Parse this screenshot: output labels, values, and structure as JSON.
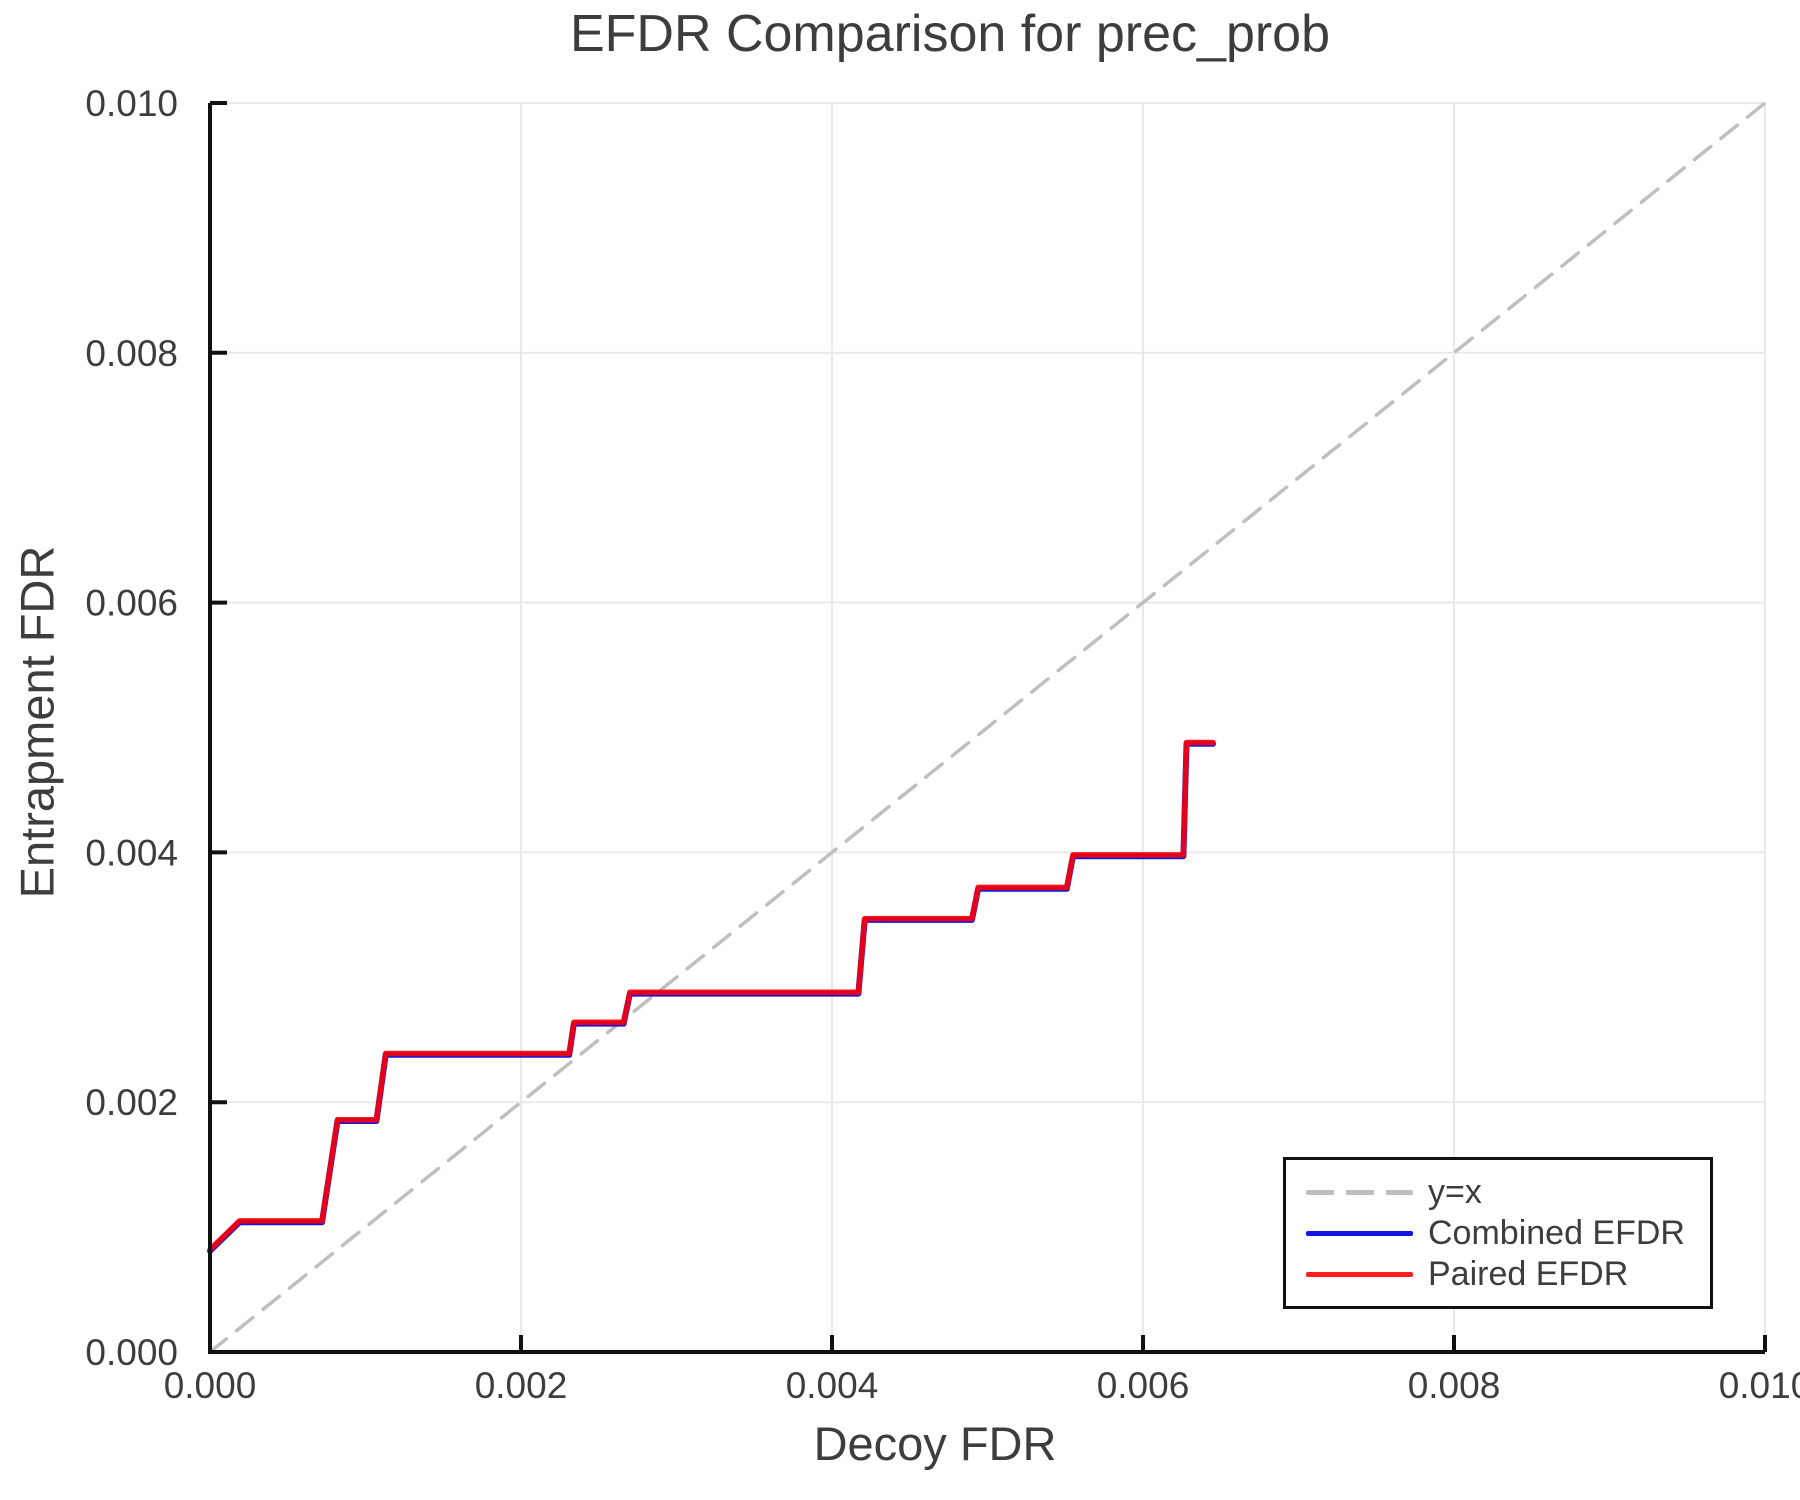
{
  "chart_data": {
    "type": "line",
    "title": "EFDR Comparison for prec_prob",
    "xlabel": "Decoy FDR",
    "ylabel": "Entrapment FDR",
    "xlim": [
      0.0,
      0.01
    ],
    "ylim": [
      0.0,
      0.01
    ],
    "xticks": [
      0.0,
      0.002,
      0.004,
      0.006,
      0.008,
      0.01
    ],
    "yticks": [
      0.0,
      0.002,
      0.004,
      0.006,
      0.008,
      0.01
    ],
    "xtick_labels": [
      "0.000",
      "0.002",
      "0.004",
      "0.006",
      "0.008",
      "0.010"
    ],
    "ytick_labels": [
      "0.000",
      "0.002",
      "0.004",
      "0.006",
      "0.008",
      "0.010"
    ],
    "grid": true,
    "grid_color": "#e9e9e9",
    "text_color": "#3d3d3d",
    "axis_color": "#111111",
    "legend_position": "lower right",
    "series": [
      {
        "name": "y=x",
        "style": "dashed",
        "color": "#bfbfbf",
        "x": [
          0.0,
          0.01
        ],
        "y": [
          0.0,
          0.01
        ]
      },
      {
        "name": "Combined EFDR",
        "style": "solid",
        "color": "#1414e6",
        "x": [
          0.0,
          0.00019,
          0.00072,
          0.00082,
          0.00107,
          0.00113,
          0.00231,
          0.00234,
          0.00266,
          0.0027,
          0.00417,
          0.00421,
          0.0049,
          0.00494,
          0.00551,
          0.00555,
          0.00626,
          0.00628,
          0.00645
        ],
        "y": [
          0.00082,
          0.00105,
          0.00105,
          0.00186,
          0.00186,
          0.00239,
          0.00239,
          0.00264,
          0.00264,
          0.00288,
          0.00288,
          0.00347,
          0.00347,
          0.00372,
          0.00372,
          0.00398,
          0.00398,
          0.00488,
          0.00488
        ]
      },
      {
        "name": "Paired EFDR",
        "style": "solid",
        "color": "#ff0000",
        "opacity": 0.88,
        "x": [
          0.0,
          0.00019,
          0.00072,
          0.00082,
          0.00107,
          0.00113,
          0.00231,
          0.00234,
          0.00266,
          0.0027,
          0.00417,
          0.00421,
          0.0049,
          0.00494,
          0.00551,
          0.00555,
          0.00626,
          0.00628,
          0.00645
        ],
        "y": [
          0.00082,
          0.00105,
          0.00105,
          0.00186,
          0.00186,
          0.00239,
          0.00239,
          0.00264,
          0.00264,
          0.00288,
          0.00288,
          0.00347,
          0.00347,
          0.00372,
          0.00372,
          0.00398,
          0.00398,
          0.00488,
          0.00488
        ]
      }
    ]
  }
}
